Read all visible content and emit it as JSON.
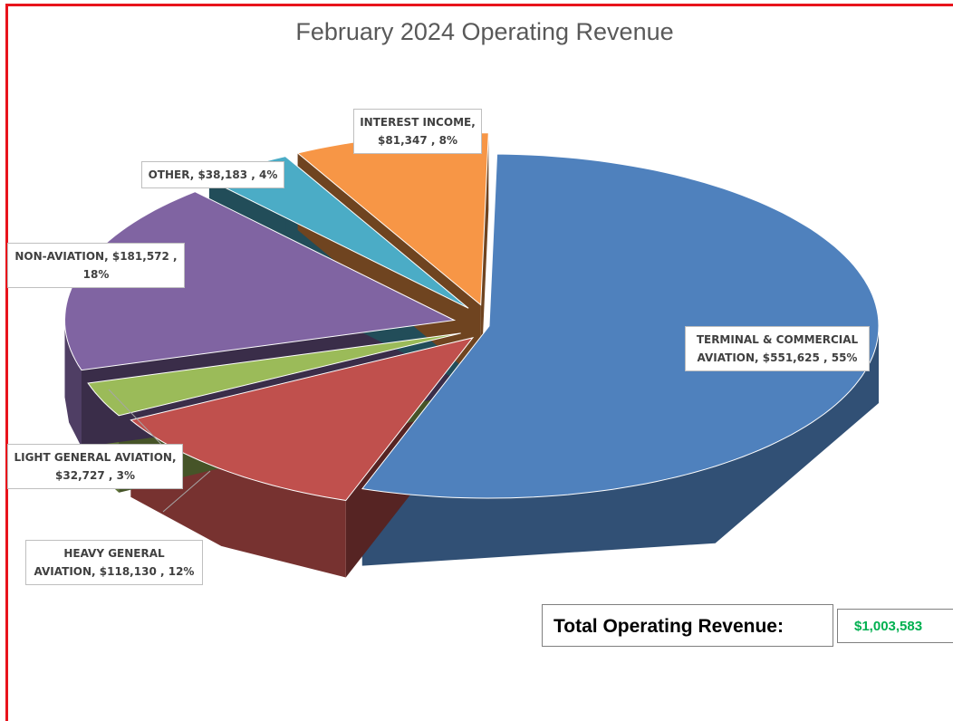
{
  "chart_data": {
    "type": "pie",
    "title": "February 2024 Operating Revenue",
    "categories": [
      "TERMINAL & COMMERCIAL AVIATION",
      "HEAVY GENERAL AVIATION",
      "LIGHT GENERAL AVIATION",
      "NON-AVIATION",
      "OTHER",
      "INTEREST INCOME"
    ],
    "values": [
      551625,
      118130,
      32727,
      181572,
      38183,
      81347
    ],
    "value_labels": [
      "$551,625",
      "$118,130",
      "$32,727",
      "$181,572",
      "$38,183",
      "$81,347"
    ],
    "percent_labels": [
      "55%",
      "12%",
      "3%",
      "18%",
      "4%",
      "8%"
    ],
    "colors": [
      "#4f81bd",
      "#c0504d",
      "#9bbb59",
      "#8064a2",
      "#4bacc6",
      "#f79646"
    ],
    "total": {
      "label": "Total Operating Revenue:",
      "value": 1003583,
      "value_label": "$1,003,583"
    }
  }
}
